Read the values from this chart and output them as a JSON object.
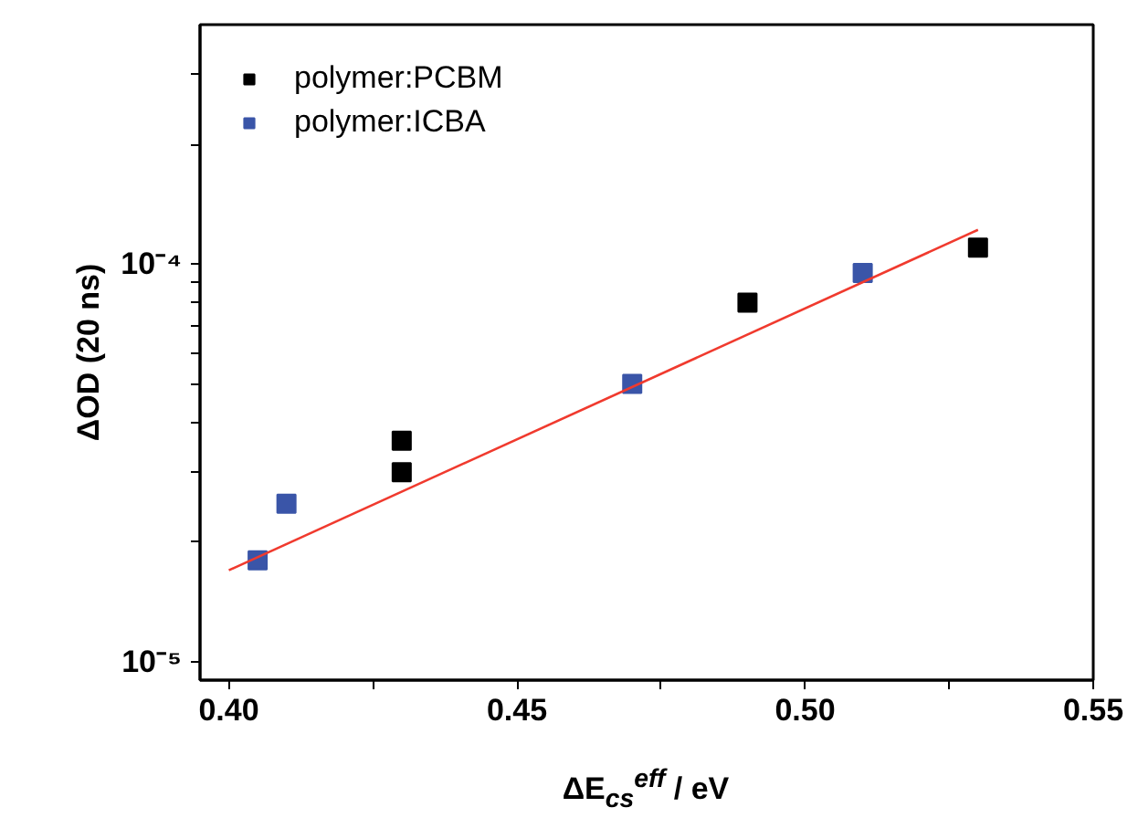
{
  "chart_data": {
    "type": "scatter",
    "xlabel": "ΔE$_{cs}$$^{eff}$ / eV",
    "ylabel": "ΔOD (20 ns)",
    "log": "y",
    "marker": "square",
    "legend": "top left",
    "grid": false,
    "xlim": [
      0.395,
      0.55
    ],
    "ylim": [
      9e-06,
      0.0004
    ],
    "xticks": [
      {
        "value": 0.4,
        "label": "0.40"
      },
      {
        "value": 0.425,
        "label": null
      },
      0.45,
      {
        "value": 0.475,
        "label": null
      },
      {
        "value": 0.5,
        "label": "0.50"
      },
      {
        "value": 0.525,
        "label": null
      },
      0.55
    ],
    "yticks": [
      {
        "value": 1e-05,
        "label": "10⁻⁵"
      },
      {
        "value": 2e-05,
        "label": null
      },
      {
        "value": 3e-05,
        "label": null
      },
      {
        "value": 4e-05,
        "label": null
      },
      {
        "value": 5e-05,
        "label": null
      },
      {
        "value": 6e-05,
        "label": null
      },
      {
        "value": 7e-05,
        "label": null
      },
      {
        "value": 8e-05,
        "label": null
      },
      {
        "value": 9e-05,
        "label": null
      },
      {
        "value": 0.0001,
        "label": "10⁻⁴"
      },
      {
        "value": 0.0002,
        "label": null
      },
      {
        "value": 0.0003,
        "label": null
      }
    ],
    "series": [
      {
        "name": "polymer:PCBM",
        "color": "#000000",
        "x": [
          0.43,
          0.43,
          0.49,
          0.53
        ],
        "values": [
          3.6e-05,
          3e-05,
          8e-05,
          0.00011
        ]
      },
      {
        "name": "polymer:ICBA",
        "color": "#3a55a8",
        "x": [
          0.405,
          0.41,
          0.47,
          0.51
        ],
        "values": [
          1.8e-05,
          2.5e-05,
          5e-05,
          9.5e-05
        ]
      },
      {
        "type": "line",
        "marker": "none",
        "color": "#f03a2e",
        "x": [
          0.4,
          0.53
        ],
        "values": [
          1.7e-05,
          0.000122
        ]
      }
    ]
  }
}
